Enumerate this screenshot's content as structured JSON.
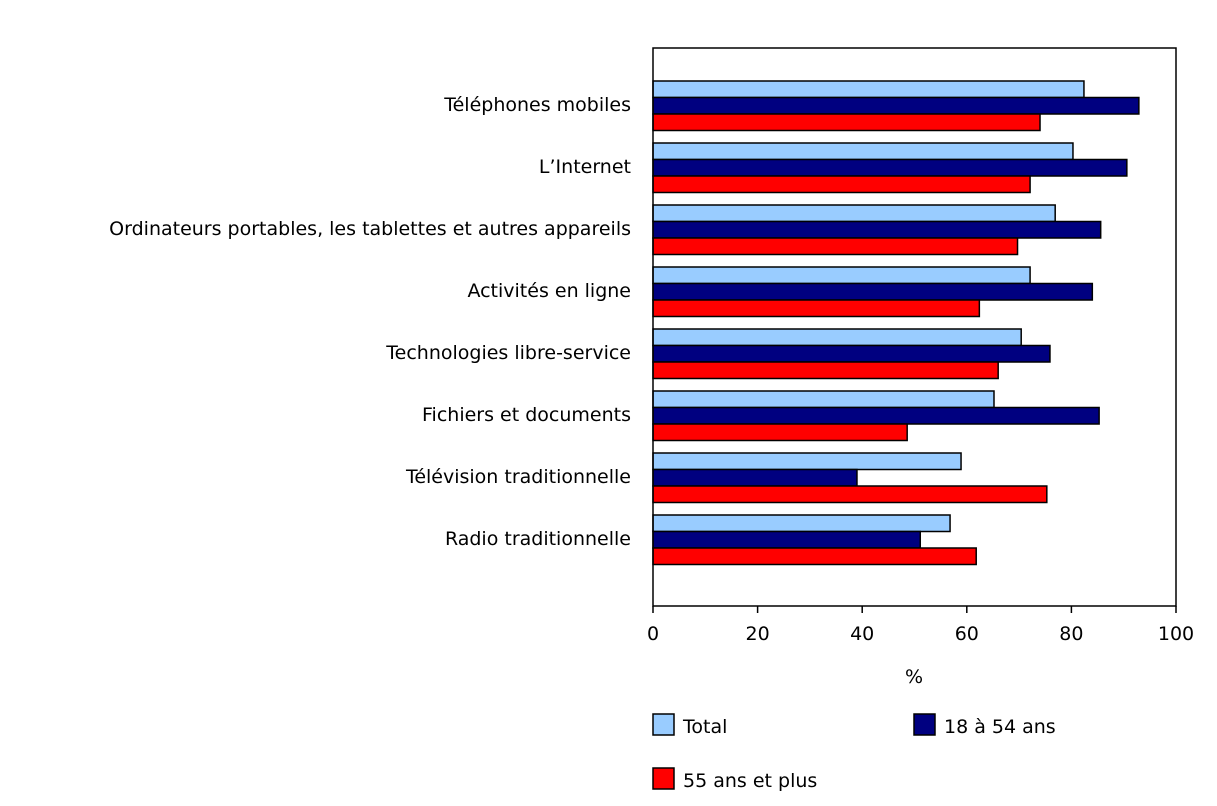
{
  "chart_data": {
    "type": "bar",
    "orientation": "horizontal",
    "title": "",
    "xlabel": "%",
    "ylabel": "",
    "xlim": [
      0,
      100
    ],
    "xticks": [
      0,
      20,
      40,
      60,
      80,
      100
    ],
    "grid": false,
    "legend_position": "bottom",
    "categories": [
      "Téléphones mobiles",
      "L’Internet",
      "Ordinateurs portables, les tablettes et autres appareils",
      "Activités en ligne",
      "Technologies libre-service",
      "Fichiers et documents",
      "Télévision traditionnelle",
      "Radio traditionnelle"
    ],
    "series": [
      {
        "name": "Total",
        "color": "#99ccff",
        "values": [
          82.4,
          80.3,
          76.9,
          72.1,
          70.4,
          65.2,
          58.9,
          56.8
        ]
      },
      {
        "name": "18 à 54 ans",
        "color": "#000080",
        "values": [
          92.9,
          90.6,
          85.6,
          84.0,
          75.9,
          85.3,
          39.0,
          51.1
        ]
      },
      {
        "name": "55 ans et plus",
        "color": "#ff0000",
        "values": [
          74.0,
          72.1,
          69.7,
          62.4,
          66.0,
          48.6,
          75.3,
          61.8
        ]
      }
    ]
  }
}
